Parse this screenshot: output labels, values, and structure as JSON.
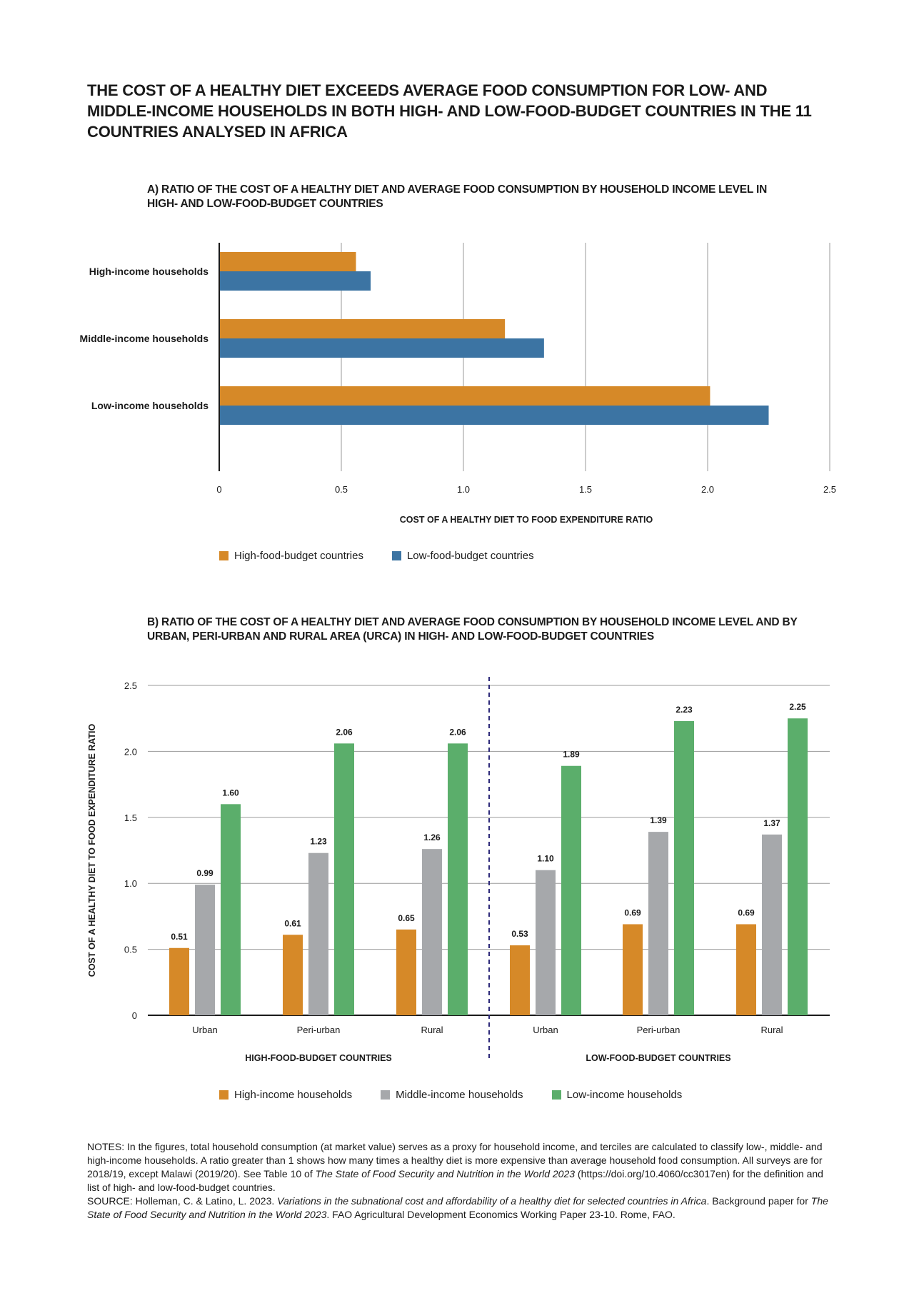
{
  "main_title": "THE COST OF A HEALTHY DIET EXCEEDS AVERAGE FOOD CONSUMPTION FOR LOW- AND MIDDLE-INCOME HOUSEHOLDS IN BOTH HIGH- AND LOW-FOOD-BUDGET COUNTRIES IN THE 11 COUNTRIES ANALYSED IN AFRICA",
  "colors": {
    "orange": "#D68928",
    "blue": "#3C74A3",
    "grey": "#A6A8AB",
    "green": "#5BAE6B",
    "divider": "#2E2A7A"
  },
  "chart_data": [
    {
      "type": "bar",
      "orientation": "horizontal",
      "title": "A) RATIO OF THE COST OF A HEALTHY DIET AND AVERAGE FOOD CONSUMPTION BY HOUSEHOLD INCOME LEVEL IN HIGH- AND LOW-FOOD-BUDGET COUNTRIES",
      "categories": [
        "High-income households",
        "Middle-income households",
        "Low-income households"
      ],
      "series": [
        {
          "name": "High-food-budget countries",
          "values": [
            0.56,
            1.17,
            2.01
          ]
        },
        {
          "name": "Low-food-budget countries",
          "values": [
            0.62,
            1.33,
            2.25
          ]
        }
      ],
      "xlabel": "COST OF A HEALTHY DIET TO FOOD EXPENDITURE RATIO",
      "xlim": [
        0,
        2.5
      ],
      "xticks": [
        "0",
        "0.5",
        "1.0",
        "1.5",
        "2.0",
        "2.5"
      ],
      "grid": "vertical",
      "legend": "bottom"
    },
    {
      "type": "bar",
      "orientation": "vertical",
      "title": "B) RATIO OF THE COST OF A HEALTHY DIET AND AVERAGE FOOD CONSUMPTION BY HOUSEHOLD INCOME LEVEL AND BY URBAN, PERI-URBAN AND RURAL AREA (URCA) IN HIGH- AND LOW-FOOD-BUDGET COUNTRIES",
      "categories": [
        "Urban",
        "Peri-urban",
        "Rural",
        "Urban",
        "Peri-urban",
        "Rural"
      ],
      "groups": [
        "HIGH-FOOD-BUDGET COUNTRIES",
        "LOW-FOOD-BUDGET COUNTRIES"
      ],
      "series": [
        {
          "name": "High-income households",
          "values": [
            0.51,
            0.61,
            0.65,
            0.53,
            0.69,
            0.69
          ]
        },
        {
          "name": "Middle-income households",
          "values": [
            0.99,
            1.23,
            1.26,
            1.1,
            1.39,
            1.37
          ]
        },
        {
          "name": "Low-income households",
          "values": [
            1.6,
            2.06,
            2.06,
            1.89,
            2.23,
            2.25
          ]
        }
      ],
      "data_labels": [
        [
          "0.51",
          "0.61",
          "0.65",
          "0.53",
          "0.69",
          "0.69"
        ],
        [
          "0.99",
          "1.23",
          "1.26",
          "1.10",
          "1.39",
          "1.37"
        ],
        [
          "1.60",
          "2.06",
          "2.06",
          "1.89",
          "2.23",
          "2.25"
        ]
      ],
      "ylabel": "COST OF A HEALTHY DIET TO FOOD EXPENDITURE RATIO",
      "ylim": [
        0,
        2.5
      ],
      "yticks": [
        "0",
        "0.5",
        "1.0",
        "1.5",
        "2.0",
        "2.5"
      ],
      "grid": "horizontal",
      "legend": "bottom"
    }
  ],
  "notes": {
    "notes_label": "NOTES:",
    "notes_text": " In the figures, total household consumption (at market value) serves as a proxy for household income, and terciles are calculated to classify low-, middle- and high-income households. A ratio greater than 1 shows how many times a healthy diet is more expensive than average household food consumption. All surveys are for 2018/19, except Malawi (2019/20). See Table 10 of ",
    "notes_italic": "The State of Food Security and Nutrition in the World 2023",
    "notes_tail": " (https://doi.org/10.4060/cc3017en) for the definition and list of high- and low-food-budget countries.",
    "source_label": "SOURCE:",
    "source_text": " Holleman, C. & Latino, L. 2023. ",
    "source_italic_1": "Variations in the subnational cost and affordability of a healthy diet for selected countries in Africa",
    "source_mid": ". Background paper for ",
    "source_italic_2": "The State of Food Security and Nutrition in the World 2023",
    "source_tail": ". FAO Agricultural Development Economics Working Paper 23-10. Rome, FAO."
  }
}
